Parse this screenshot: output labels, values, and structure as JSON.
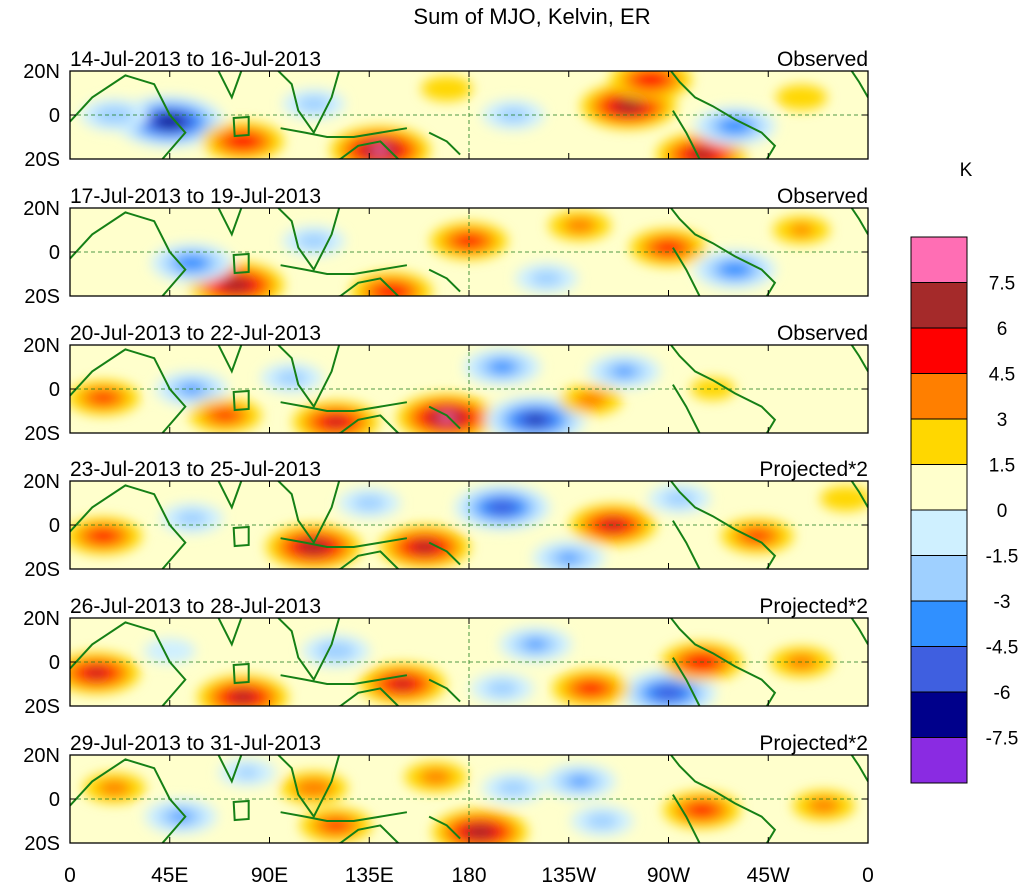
{
  "chart_data": {
    "type": "heatmap",
    "title": "Sum of MJO, Kelvin, ER",
    "units": "K",
    "x_ticks": [
      "0",
      "45E",
      "90E",
      "135E",
      "180",
      "135W",
      "90W",
      "45W",
      "0"
    ],
    "x_tick_lon": [
      0,
      45,
      90,
      135,
      180,
      225,
      270,
      315,
      360
    ],
    "y_ticks": [
      "20N",
      "0",
      "20S"
    ],
    "y_tick_lat": [
      20,
      0,
      -20
    ],
    "colorbar": {
      "labels": [
        "7.5",
        "6",
        "4.5",
        "3",
        "1.5",
        "0",
        "-1.5",
        "-3",
        "-4.5",
        "-6",
        "-7.5"
      ],
      "colors": [
        "#ff6eb4",
        "#a52a2a",
        "#ff0000",
        "#ff7f00",
        "#ffd700",
        "#ffffcc",
        "#cff0ff",
        "#9fd0ff",
        "#3090ff",
        "#3f5fe0",
        "#00008b",
        "#8a2be2"
      ]
    },
    "panels": [
      {
        "date_range": "14-Jul-2013 to 16-Jul-2013",
        "label": "Observed",
        "blobs": [
          {
            "lon": 45,
            "lat": -3,
            "value": -8.0
          },
          {
            "lon": 78,
            "lat": -12,
            "value": 5.0
          },
          {
            "lon": 140,
            "lat": -16,
            "value": 7.0
          },
          {
            "lon": 252,
            "lat": 4,
            "value": 6.5
          },
          {
            "lon": 262,
            "lat": 16,
            "value": 5.0
          },
          {
            "lon": 285,
            "lat": -18,
            "value": 6.0
          },
          {
            "lon": 300,
            "lat": -5,
            "value": -5.0
          },
          {
            "lon": 200,
            "lat": 0,
            "value": -3.0
          },
          {
            "lon": 20,
            "lat": 0,
            "value": -3.5
          },
          {
            "lon": 110,
            "lat": 5,
            "value": -3.0
          },
          {
            "lon": 330,
            "lat": 8,
            "value": 2.0
          },
          {
            "lon": 170,
            "lat": 12,
            "value": 2.0
          }
        ]
      },
      {
        "date_range": "17-Jul-2013 to 19-Jul-2013",
        "label": "Observed",
        "blobs": [
          {
            "lon": 75,
            "lat": -15,
            "value": 6.5
          },
          {
            "lon": 55,
            "lat": -5,
            "value": -5.0
          },
          {
            "lon": 110,
            "lat": 5,
            "value": -3.0
          },
          {
            "lon": 145,
            "lat": -18,
            "value": 5.0
          },
          {
            "lon": 180,
            "lat": 5,
            "value": 4.5
          },
          {
            "lon": 270,
            "lat": 2,
            "value": 4.5
          },
          {
            "lon": 300,
            "lat": -8,
            "value": -5.0
          },
          {
            "lon": 215,
            "lat": -12,
            "value": -3.0
          },
          {
            "lon": 230,
            "lat": 12,
            "value": 3.0
          },
          {
            "lon": 330,
            "lat": 10,
            "value": 2.5
          }
        ]
      },
      {
        "date_range": "20-Jul-2013 to 22-Jul-2013",
        "label": "Observed",
        "blobs": [
          {
            "lon": 15,
            "lat": -4,
            "value": 4.0
          },
          {
            "lon": 55,
            "lat": 0,
            "value": -4.0
          },
          {
            "lon": 70,
            "lat": -12,
            "value": 4.0
          },
          {
            "lon": 120,
            "lat": -15,
            "value": 5.5
          },
          {
            "lon": 170,
            "lat": -13,
            "value": 7.0
          },
          {
            "lon": 210,
            "lat": -14,
            "value": -7.0
          },
          {
            "lon": 195,
            "lat": 10,
            "value": -4.5
          },
          {
            "lon": 250,
            "lat": 8,
            "value": -4.0
          },
          {
            "lon": 100,
            "lat": 5,
            "value": -3.0
          },
          {
            "lon": 235,
            "lat": -5,
            "value": 3.0
          },
          {
            "lon": 290,
            "lat": 0,
            "value": 1.5
          }
        ]
      },
      {
        "date_range": "23-Jul-2013 to 25-Jul-2013",
        "label": "Projected*2",
        "blobs": [
          {
            "lon": 15,
            "lat": -5,
            "value": 4.5
          },
          {
            "lon": 55,
            "lat": 3,
            "value": -3.0
          },
          {
            "lon": 110,
            "lat": -10,
            "value": 6.5
          },
          {
            "lon": 160,
            "lat": -10,
            "value": 6.0
          },
          {
            "lon": 195,
            "lat": 8,
            "value": -6.5
          },
          {
            "lon": 245,
            "lat": 0,
            "value": 5.5
          },
          {
            "lon": 310,
            "lat": -5,
            "value": 4.0
          },
          {
            "lon": 225,
            "lat": -15,
            "value": -4.0
          },
          {
            "lon": 275,
            "lat": 12,
            "value": -3.0
          },
          {
            "lon": 135,
            "lat": 10,
            "value": -3.0
          },
          {
            "lon": 350,
            "lat": 12,
            "value": 2.0
          }
        ]
      },
      {
        "date_range": "26-Jul-2013 to 28-Jul-2013",
        "label": "Projected*2",
        "blobs": [
          {
            "lon": 12,
            "lat": -5,
            "value": 5.5
          },
          {
            "lon": 78,
            "lat": -16,
            "value": 6.0
          },
          {
            "lon": 150,
            "lat": -10,
            "value": 5.5
          },
          {
            "lon": 120,
            "lat": 5,
            "value": -3.5
          },
          {
            "lon": 210,
            "lat": 8,
            "value": -4.0
          },
          {
            "lon": 270,
            "lat": -14,
            "value": -6.5
          },
          {
            "lon": 285,
            "lat": 0,
            "value": 5.0
          },
          {
            "lon": 235,
            "lat": -12,
            "value": 4.5
          },
          {
            "lon": 195,
            "lat": -12,
            "value": -3.0
          },
          {
            "lon": 45,
            "lat": 5,
            "value": -2.0
          },
          {
            "lon": 330,
            "lat": 0,
            "value": 3.0
          }
        ]
      },
      {
        "date_range": "29-Jul-2013 to 31-Jul-2013",
        "label": "Projected*2",
        "blobs": [
          {
            "lon": 20,
            "lat": 5,
            "value": 3.0
          },
          {
            "lon": 50,
            "lat": -8,
            "value": -4.0
          },
          {
            "lon": 110,
            "lat": 5,
            "value": 3.5
          },
          {
            "lon": 120,
            "lat": -12,
            "value": 4.0
          },
          {
            "lon": 185,
            "lat": -15,
            "value": 6.5
          },
          {
            "lon": 200,
            "lat": 5,
            "value": -3.0
          },
          {
            "lon": 230,
            "lat": 8,
            "value": -4.0
          },
          {
            "lon": 240,
            "lat": -10,
            "value": -3.0
          },
          {
            "lon": 285,
            "lat": -5,
            "value": 4.5
          },
          {
            "lon": 165,
            "lat": 10,
            "value": 3.0
          },
          {
            "lon": 340,
            "lat": -3,
            "value": 3.0
          },
          {
            "lon": 80,
            "lat": 12,
            "value": -2.5
          }
        ]
      }
    ]
  }
}
